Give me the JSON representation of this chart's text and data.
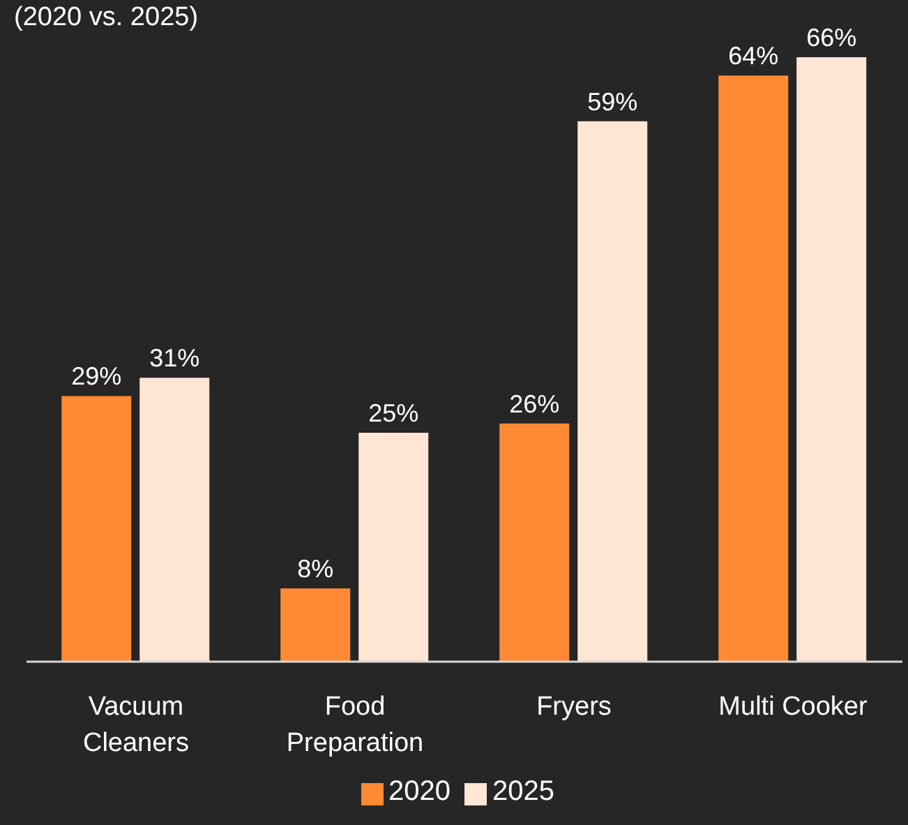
{
  "chart_data": {
    "type": "bar",
    "subtitle": "(2020 vs. 2025)",
    "categories": [
      "Vacuum Cleaners",
      "Food Preparation",
      "Fryers",
      "Multi Cooker"
    ],
    "series": [
      {
        "name": "2020",
        "color": "#ff8a33",
        "values": [
          29,
          8,
          26,
          64
        ],
        "value_labels": [
          "29%",
          "8%",
          "26%",
          "64%"
        ]
      },
      {
        "name": "2025",
        "color": "#ffe5d4",
        "values": [
          31,
          25,
          59,
          66
        ],
        "value_labels": [
          "31%",
          "25%",
          "59%",
          "66%"
        ]
      }
    ],
    "legend": "bottom"
  }
}
